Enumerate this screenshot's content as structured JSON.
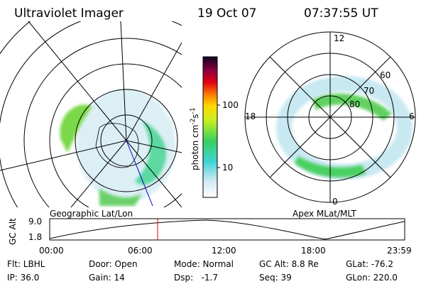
{
  "header": {
    "title": "Ultraviolet Imager",
    "date": "19 Oct 07",
    "time": "07:37:55 UT"
  },
  "colorbar": {
    "label": "photon cm",
    "exp1": "-2",
    "unit2": "s",
    "exp2": "-1",
    "ticks": [
      "100",
      "10"
    ]
  },
  "left_panel": {
    "label": "Geographic Lat/Lon"
  },
  "right_panel": {
    "label": "Apex MLat/MLT",
    "mlt": [
      "12",
      "18",
      "6",
      "0"
    ],
    "mlat": [
      "60",
      "70",
      "80"
    ]
  },
  "altitude_panel": {
    "axis_label": "GC Alt",
    "yticks": [
      "9.0",
      "1.8"
    ],
    "xticks": [
      "00:00",
      "06:00",
      "12:00",
      "18:00",
      "23:59"
    ]
  },
  "info": [
    [
      "Flt: LBHL",
      "Door: Open",
      "Mode: Normal",
      "GC Alt: 8.8 Re",
      "GLat: -76.2"
    ],
    [
      "IP: 36.0",
      "Gain: 14",
      "Dsp:   -1.7",
      "Seq: 39",
      "GLon: 220.0"
    ]
  ]
}
